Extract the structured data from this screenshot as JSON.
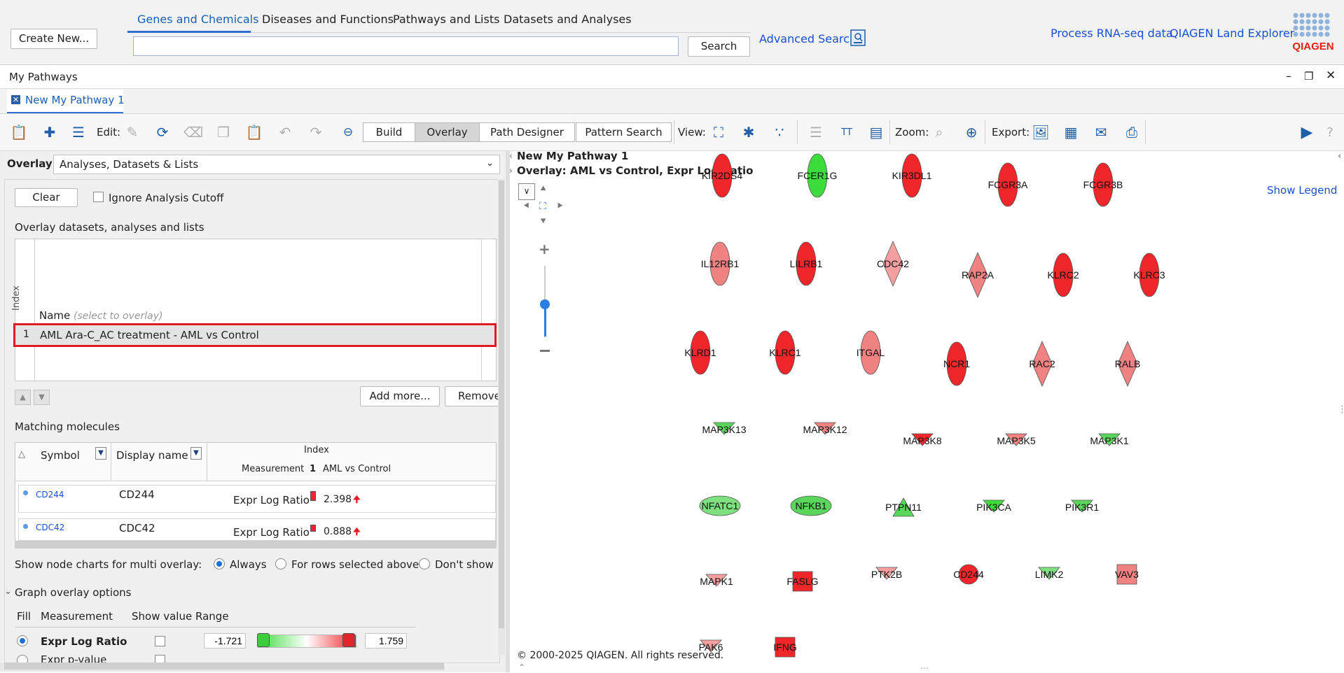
{
  "topbar": {
    "create_new": "Create New...",
    "tabs": [
      "Genes and Chemicals",
      "Diseases and Functions",
      "Pathways and Lists",
      "Datasets and Analyses"
    ],
    "search_value": "",
    "search_button": "Search",
    "advanced_search": "Advanced Search",
    "process_rnaseq": "Process RNA-seq data",
    "land_explorer": "QIAGEN Land Explorer",
    "logo_text": "QIAGEN"
  },
  "window": {
    "title": "My Pathways",
    "doc_tab": "New My Pathway 1"
  },
  "toolbar": {
    "edit_label": "Edit:",
    "modes": [
      "Build",
      "Overlay",
      "Path Designer",
      "Pattern Search"
    ],
    "selected_mode": "Overlay",
    "view_label": "View:",
    "zoom_label": "Zoom:",
    "export_label": "Export:"
  },
  "left_panel": {
    "overlay_label": "Overlay:",
    "overlay_value": "Analyses, Datasets & Lists",
    "clear_button": "Clear",
    "ignore_cutoff": "Ignore Analysis Cutoff",
    "datasets_heading": "Overlay datasets, analyses and lists",
    "col_index": "Index",
    "col_name": "Name",
    "col_name_hint": "(select to overlay)",
    "row_index": "1",
    "row_name": "AML Ara-C_AC treatment - AML vs Control",
    "add_more": "Add more...",
    "remove": "Remove",
    "matching_heading": "Matching molecules",
    "mm_cols": {
      "symbol": "Symbol",
      "display": "Display name",
      "index": "Index",
      "measurement": "Measurement",
      "idx_num": "1",
      "aml": "AML vs Control"
    },
    "mm_rows": [
      {
        "symbol": "CD244",
        "display": "CD244",
        "measurement": "Expr Log Ratio",
        "value": "2.398"
      },
      {
        "symbol": "CDC42",
        "display": "CDC42",
        "measurement": "Expr Log Ratio",
        "value": "0.888"
      }
    ],
    "node_charts_label": "Show node charts for multi overlay:",
    "node_chart_options": [
      "Always",
      "For rows selected above",
      "Don't show"
    ],
    "node_chart_selected": "Always",
    "graph_overlay_heading": "Graph overlay options",
    "go_cols": {
      "fill": "Fill",
      "measurement": "Measurement",
      "show_value": "Show value",
      "range": "Range"
    },
    "go_row1": {
      "measurement": "Expr Log Ratio",
      "min": "-1.721",
      "max": "1.759"
    },
    "go_row2": {
      "measurement": "Expr p-value"
    }
  },
  "canvas": {
    "title": "New My Pathway 1",
    "overlay_caption": "Overlay: AML vs Control, Expr Log Ratio",
    "show_legend": "Show Legend",
    "copyright": "© 2000-2025 QIAGEN. All rights reserved.",
    "colors": {
      "up_strong": "#f0262b",
      "up_light": "#f08282",
      "down": "#4fd44f",
      "down_light": "#88e888"
    },
    "nodes": [
      {
        "label": "KIR2DS4",
        "shape": "ellipse",
        "color": "#f0262b"
      },
      {
        "label": "FCER1G",
        "shape": "ellipse",
        "color": "#3ddc3d"
      },
      {
        "label": "KIR3DL1",
        "shape": "ellipse",
        "color": "#f0262b"
      },
      {
        "label": "FCGR3A",
        "shape": "ellipse",
        "color": "#f0262b"
      },
      {
        "label": "FCGR3B",
        "shape": "ellipse",
        "color": "#f0262b"
      },
      {
        "label": "IL12RB1",
        "shape": "ellipse",
        "color": "#f08282"
      },
      {
        "label": "LILRB1",
        "shape": "ellipse",
        "color": "#f0262b"
      },
      {
        "label": "CDC42",
        "shape": "diamond",
        "color": "#f5a0a0"
      },
      {
        "label": "RAP2A",
        "shape": "diamond",
        "color": "#f08282"
      },
      {
        "label": "KLRC2",
        "shape": "ellipse",
        "color": "#f0262b"
      },
      {
        "label": "KLRC3",
        "shape": "ellipse",
        "color": "#f0262b"
      },
      {
        "label": "KLRD1",
        "shape": "ellipse",
        "color": "#f0262b"
      },
      {
        "label": "KLRC1",
        "shape": "ellipse",
        "color": "#f0262b"
      },
      {
        "label": "ITGAL",
        "shape": "ellipse",
        "color": "#f08282"
      },
      {
        "label": "NCR1",
        "shape": "ellipse",
        "color": "#f0262b"
      },
      {
        "label": "RAC2",
        "shape": "diamond",
        "color": "#f08282"
      },
      {
        "label": "RALB",
        "shape": "diamond",
        "color": "#f08282"
      },
      {
        "label": "MAP3K13",
        "shape": "triangle-down",
        "color": "#5ad65a"
      },
      {
        "label": "MAP3K12",
        "shape": "triangle-down",
        "color": "#f08282"
      },
      {
        "label": "MAP3K8",
        "shape": "triangle-down",
        "color": "#f0262b"
      },
      {
        "label": "MAP3K5",
        "shape": "triangle-down",
        "color": "#f08282"
      },
      {
        "label": "MAP3K1",
        "shape": "triangle-down",
        "color": "#5ad65a"
      },
      {
        "label": "NFATC1",
        "shape": "ellipse-wide",
        "color": "#7ee07e"
      },
      {
        "label": "NFKB1",
        "shape": "ellipse-wide",
        "color": "#5ad65a"
      },
      {
        "label": "PTPN11",
        "shape": "triangle-up",
        "color": "#5ad65a"
      },
      {
        "label": "PIK3CA",
        "shape": "triangle-down",
        "color": "#3ddc3d"
      },
      {
        "label": "PIK3R1",
        "shape": "triangle-down",
        "color": "#5ad65a"
      },
      {
        "label": "MAPK1",
        "shape": "triangle-down",
        "color": "#f5a0a0"
      },
      {
        "label": "FASLG",
        "shape": "square",
        "color": "#f0262b"
      },
      {
        "label": "PTK2B",
        "shape": "triangle-down",
        "color": "#f5a0a0"
      },
      {
        "label": "CD244",
        "shape": "circle",
        "color": "#f0262b"
      },
      {
        "label": "LIMK2",
        "shape": "triangle-down",
        "color": "#7ee07e"
      },
      {
        "label": "VAV3",
        "shape": "square",
        "color": "#f08282"
      },
      {
        "label": "PAK6",
        "shape": "triangle-down",
        "color": "#f5a0a0"
      },
      {
        "label": "IFNG",
        "shape": "square",
        "color": "#f0262b"
      }
    ]
  }
}
